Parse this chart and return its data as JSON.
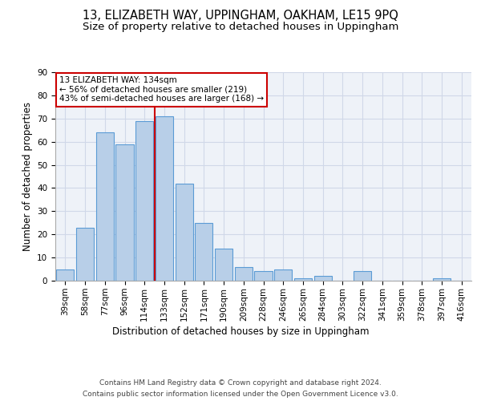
{
  "title": "13, ELIZABETH WAY, UPPINGHAM, OAKHAM, LE15 9PQ",
  "subtitle": "Size of property relative to detached houses in Uppingham",
  "xlabel": "Distribution of detached houses by size in Uppingham",
  "ylabel": "Number of detached properties",
  "categories": [
    "39sqm",
    "58sqm",
    "77sqm",
    "96sqm",
    "114sqm",
    "133sqm",
    "152sqm",
    "171sqm",
    "190sqm",
    "209sqm",
    "228sqm",
    "246sqm",
    "265sqm",
    "284sqm",
    "303sqm",
    "322sqm",
    "341sqm",
    "359sqm",
    "378sqm",
    "397sqm",
    "416sqm"
  ],
  "values": [
    5,
    23,
    64,
    59,
    69,
    71,
    42,
    25,
    14,
    6,
    4,
    5,
    1,
    2,
    0,
    4,
    0,
    0,
    0,
    1,
    0
  ],
  "bar_color": "#b8cfe8",
  "bar_edge_color": "#5b9bd5",
  "grid_color": "#d0d8e8",
  "background_color": "#eef2f8",
  "vline_x_index": 5,
  "vline_color": "#cc0000",
  "annotation_lines": [
    "13 ELIZABETH WAY: 134sqm",
    "← 56% of detached houses are smaller (219)",
    "43% of semi-detached houses are larger (168) →"
  ],
  "annotation_box_color": "#ffffff",
  "annotation_box_edge": "#cc0000",
  "ylim": [
    0,
    90
  ],
  "yticks": [
    0,
    10,
    20,
    30,
    40,
    50,
    60,
    70,
    80,
    90
  ],
  "title_fontsize": 10.5,
  "subtitle_fontsize": 9.5,
  "xlabel_fontsize": 8.5,
  "ylabel_fontsize": 8.5,
  "tick_fontsize": 7.5,
  "ann_fontsize": 7.5,
  "footer_line1": "Contains HM Land Registry data © Crown copyright and database right 2024.",
  "footer_line2": "Contains public sector information licensed under the Open Government Licence v3.0."
}
